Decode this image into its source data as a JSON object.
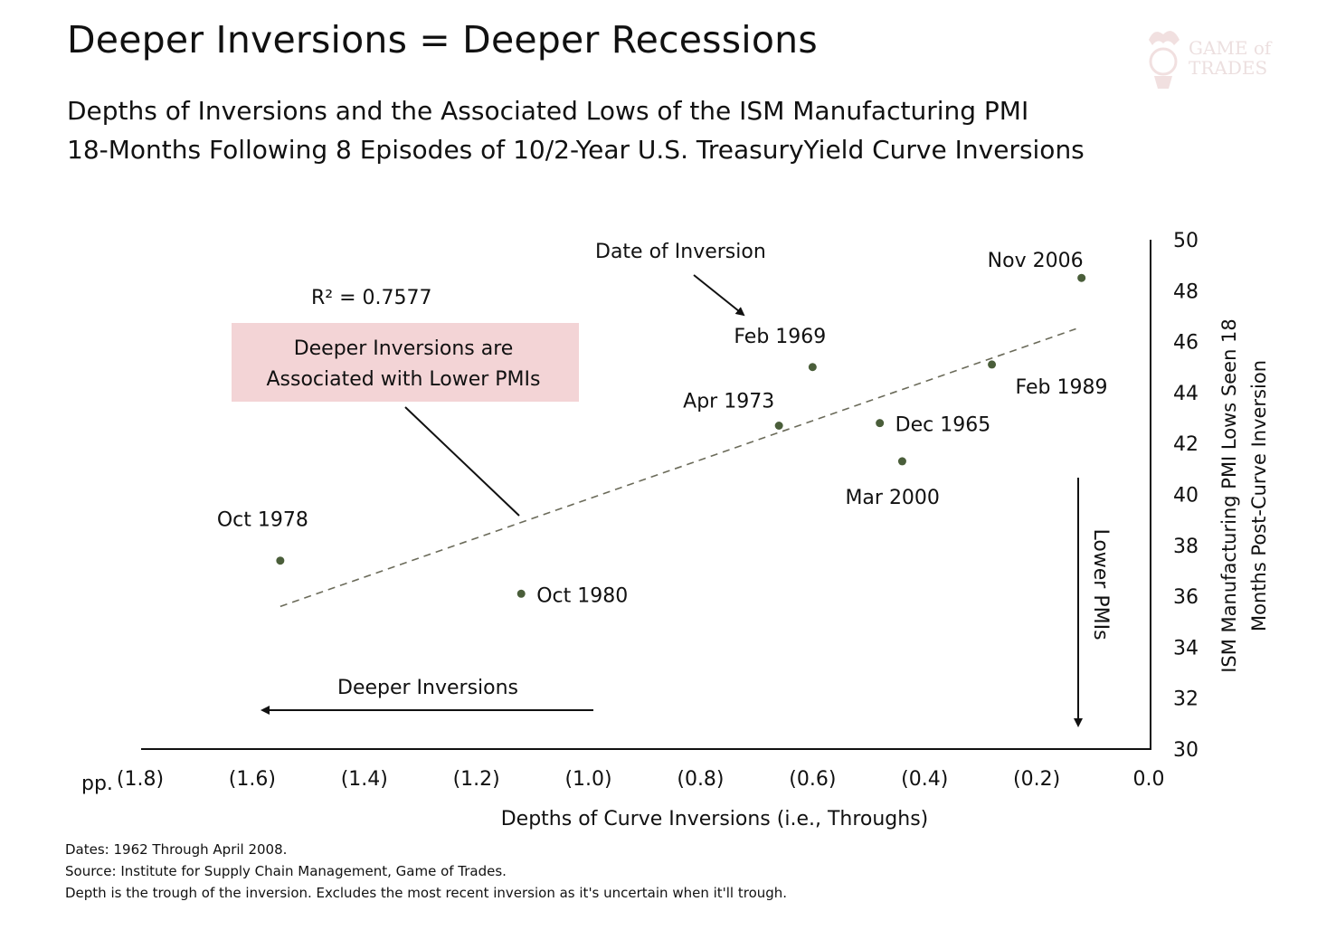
{
  "header": {
    "title": "Deeper Inversions = Deeper Recessions",
    "subtitle_line1": "Depths of Inversions and the Associated Lows of the ISM Manufacturing PMI",
    "subtitle_line2": "18-Months Following 8 Episodes of 10/2-Year U.S. TreasuryYield Curve Inversions"
  },
  "logo": {
    "line1": "GAME of",
    "line2": "TRADES"
  },
  "chart_data": {
    "type": "scatter",
    "title": "Deeper Inversions = Deeper Recessions",
    "xlabel": "Depths of Curve Inversions (i.e., Throughs)",
    "x_unit_label": "pp.",
    "ylabel_line1": "ISM Manufacturing PMI Lows Seen 18",
    "ylabel_line2": "Months Post-Curve Inversion",
    "xlim": [
      -1.8,
      0.0
    ],
    "ylim": [
      30,
      50
    ],
    "x_ticks": [
      -1.8,
      -1.6,
      -1.4,
      -1.2,
      -1.0,
      -0.8,
      -0.6,
      -0.4,
      -0.2,
      0.0
    ],
    "x_tick_labels": [
      "(1.8)",
      "(1.6)",
      "(1.4)",
      "(1.2)",
      "(1.0)",
      "(0.8)",
      "(0.6)",
      "(0.4)",
      "(0.2)",
      "0.0"
    ],
    "y_ticks": [
      30,
      32,
      34,
      36,
      38,
      40,
      42,
      44,
      46,
      48,
      50
    ],
    "y_tick_labels": [
      "30",
      "32",
      "34",
      "36",
      "38",
      "40",
      "42",
      "44",
      "46",
      "48",
      "50"
    ],
    "points": [
      {
        "label": "Oct 1978",
        "x": -1.55,
        "y": 37.4
      },
      {
        "label": "Oct 1980",
        "x": -1.12,
        "y": 36.1
      },
      {
        "label": "Apr 1973",
        "x": -0.66,
        "y": 42.7
      },
      {
        "label": "Feb 1969",
        "x": -0.6,
        "y": 45.0
      },
      {
        "label": "Dec 1965",
        "x": -0.48,
        "y": 42.8
      },
      {
        "label": "Mar 2000",
        "x": -0.44,
        "y": 41.3
      },
      {
        "label": "Feb 1989",
        "x": -0.28,
        "y": 45.1
      },
      {
        "label": "Nov 2006",
        "x": -0.12,
        "y": 48.5
      }
    ],
    "trendline": {
      "x": [
        -1.55,
        -0.13
      ],
      "y": [
        35.6,
        46.5
      ],
      "style": "dashed"
    },
    "grid": false,
    "legend": "none",
    "colors": {
      "points": "#4a5e3a",
      "trendline": "#6b6b5a",
      "callout_bg": "#f3d4d6",
      "axis": "#111111"
    },
    "annotations": {
      "r_squared": "R² = 0.7577",
      "callout_line1": "Deeper Inversions are",
      "callout_line2": "Associated with Lower PMIs",
      "date_of_inversion": "Date of Inversion",
      "deeper_inversions": "Deeper Inversions",
      "lower_pmis": "Lower PMIs"
    }
  },
  "footnotes": {
    "dates": "Dates: 1962 Through April 2008.",
    "source": "Source: Institute for Supply Chain Management, Game of Trades.",
    "depth": "Depth is the trough of the inversion. Excludes the most recent inversion as it's uncertain when it'll trough."
  }
}
